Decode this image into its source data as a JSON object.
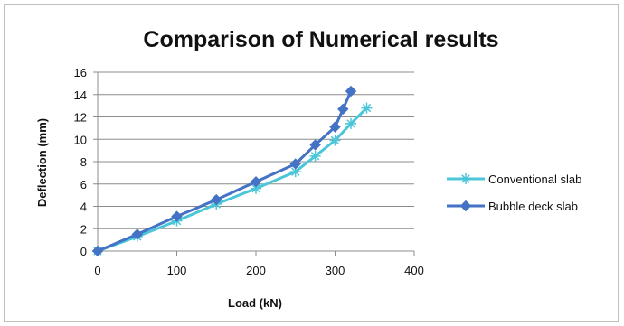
{
  "chart_data": {
    "type": "line",
    "title": "Comparison of Numerical results",
    "xlabel": "Load (kN)",
    "ylabel": "Deflection (mm)",
    "xlim": [
      0,
      400
    ],
    "ylim": [
      0,
      16
    ],
    "xticks": [
      "0",
      "100",
      "200",
      "300",
      "400"
    ],
    "yticks": [
      "0",
      "2",
      "4",
      "6",
      "8",
      "10",
      "12",
      "14",
      "16"
    ],
    "grid": "horizontal",
    "legend_position": "right",
    "series": [
      {
        "name": "Conventional slab",
        "color": "#4bc6d8",
        "marker": "star",
        "x": [
          0,
          50,
          100,
          150,
          200,
          250,
          275,
          300,
          320,
          340
        ],
        "y": [
          0,
          1.3,
          2.7,
          4.2,
          5.6,
          7.1,
          8.5,
          9.9,
          11.4,
          12.8
        ]
      },
      {
        "name": "Bubble deck slab",
        "color": "#4472c4",
        "marker": "diamond",
        "x": [
          0,
          50,
          100,
          150,
          200,
          250,
          275,
          300,
          310,
          320
        ],
        "y": [
          0,
          1.5,
          3.1,
          4.6,
          6.2,
          7.8,
          9.5,
          11.1,
          12.7,
          14.3
        ]
      }
    ]
  }
}
